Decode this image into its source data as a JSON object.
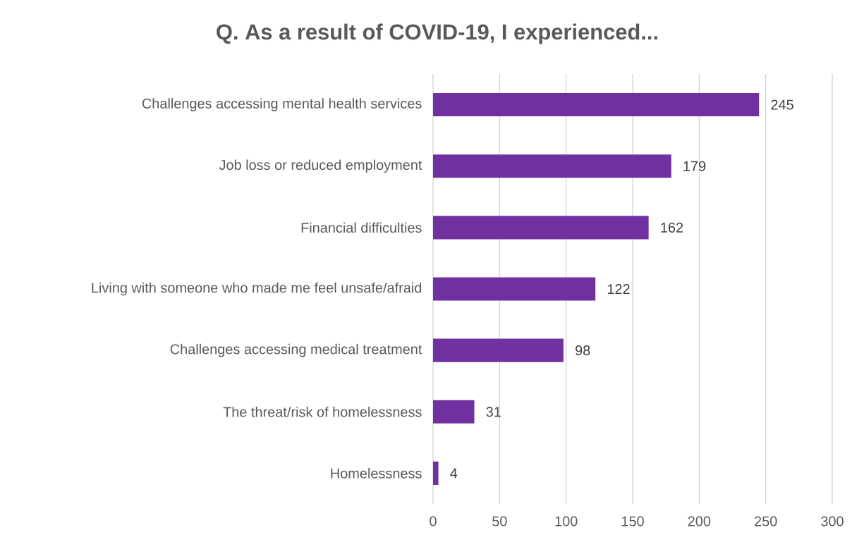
{
  "chart_data": {
    "type": "bar",
    "orientation": "horizontal",
    "title": "Q. As a result of COVID-19, I experienced...",
    "categories": [
      "Challenges accessing mental health services",
      "Job loss or reduced employment",
      "Financial difficulties",
      "Living with someone who made me feel unsafe/afraid",
      "Challenges accessing medical treatment",
      "The threat/risk of homelessness",
      "Homelessness"
    ],
    "values": [
      245,
      179,
      162,
      122,
      98,
      31,
      4
    ],
    "color": "#7030a0",
    "xlim": [
      0,
      300
    ],
    "xticks": [
      0,
      50,
      100,
      150,
      200,
      250,
      300
    ],
    "grid": "x",
    "data_labels": true
  }
}
